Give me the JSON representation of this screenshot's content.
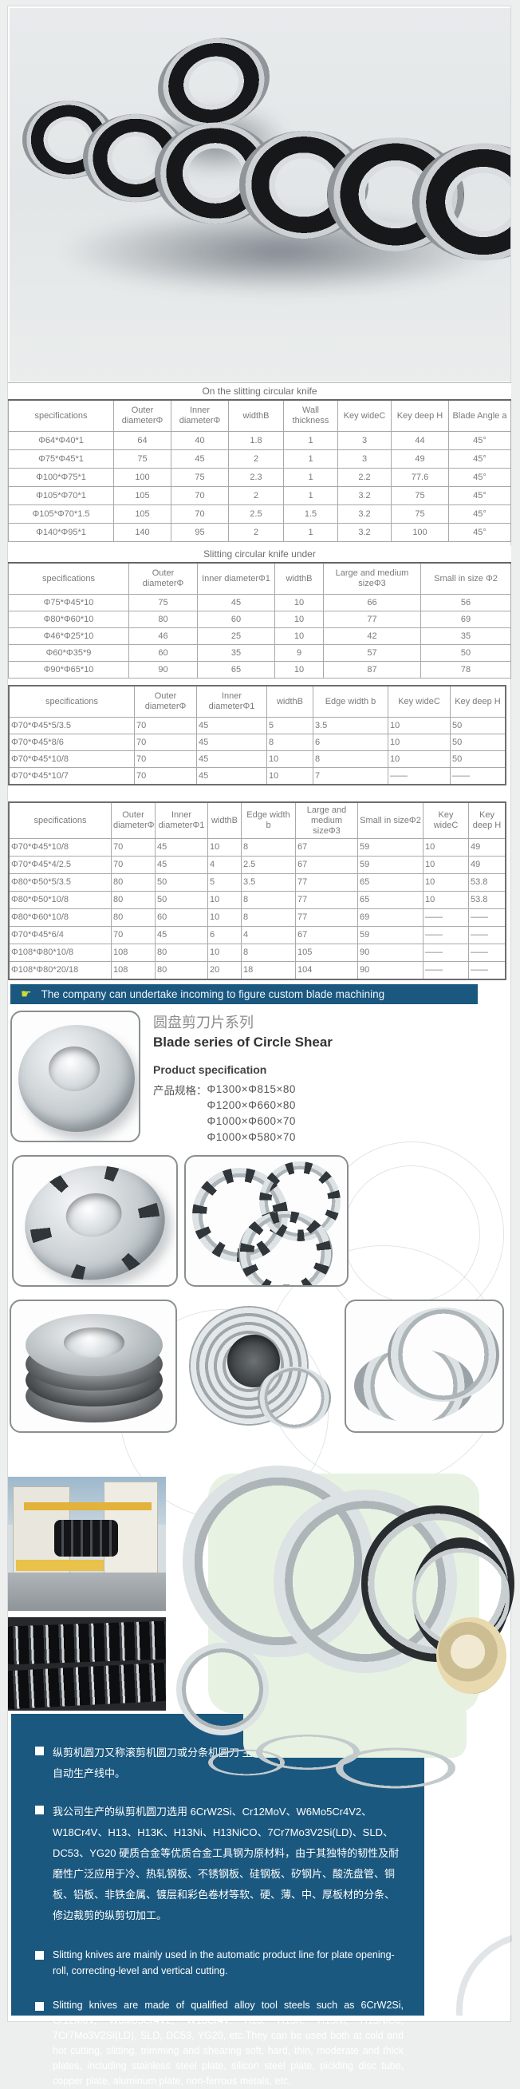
{
  "colors": {
    "accent_blue": "#1b587f",
    "page_bg": "#edefef",
    "table_text": "#7a7a7a"
  },
  "tables": [
    {
      "title": "On the slitting circular knife",
      "columns": [
        "specifications",
        "Outer diameterΦ",
        "Inner diameterΦ",
        "widthB",
        "Wall thickness",
        "Key wideC",
        "Key deep H",
        "Blade Angle a"
      ],
      "rows": [
        [
          "Φ64*Φ40*1",
          "64",
          "40",
          "1.8",
          "1",
          "3",
          "44",
          "45°"
        ],
        [
          "Φ75*Φ45*1",
          "75",
          "45",
          "2",
          "1",
          "3",
          "49",
          "45°"
        ],
        [
          "Φ100*Φ75*1",
          "100",
          "75",
          "2.3",
          "1",
          "2.2",
          "77.6",
          "45°"
        ],
        [
          "Φ105*Φ70*1",
          "105",
          "70",
          "2",
          "1",
          "3.2",
          "75",
          "45°"
        ],
        [
          "Φ105*Φ70*1.5",
          "105",
          "70",
          "2.5",
          "1.5",
          "3.2",
          "75",
          "45°"
        ],
        [
          "Φ140*Φ95*1",
          "140",
          "95",
          "2",
          "1",
          "3.2",
          "100",
          "45°"
        ]
      ]
    },
    {
      "title": "Slitting circular knife under",
      "columns": [
        "specifications",
        "Outer diameterΦ",
        "Inner diameterΦ1",
        "widthB",
        "Large and medium sizeΦ3",
        "Small in size Φ2"
      ],
      "rows": [
        [
          "Φ75*Φ45*10",
          "75",
          "45",
          "10",
          "66",
          "56"
        ],
        [
          "Φ80*Φ60*10",
          "80",
          "60",
          "10",
          "77",
          "69"
        ],
        [
          "Φ46*Φ25*10",
          "46",
          "25",
          "10",
          "42",
          "35"
        ],
        [
          "Φ60*Φ35*9",
          "60",
          "35",
          "9",
          "57",
          "50"
        ],
        [
          "Φ90*Φ65*10",
          "90",
          "65",
          "10",
          "87",
          "78"
        ]
      ]
    },
    {
      "title": null,
      "columns": [
        "specifications",
        "Outer diameterΦ",
        "Inner diameterΦ1",
        "widthB",
        "Edge width b",
        "Key wideC",
        "Key deep H"
      ],
      "rows": [
        [
          "Φ70*Φ45*5/3.5",
          "70",
          "45",
          "5",
          "3.5",
          "10",
          "50"
        ],
        [
          "Φ70*Φ45*8/6",
          "70",
          "45",
          "8",
          "6",
          "10",
          "50"
        ],
        [
          "Φ70*Φ45*10/8",
          "70",
          "45",
          "10",
          "8",
          "10",
          "50"
        ],
        [
          "Φ70*Φ45*10/7",
          "70",
          "45",
          "10",
          "7",
          "——",
          "——"
        ]
      ]
    },
    {
      "title": null,
      "columns": [
        "specifications",
        "Outer diameterΦ",
        "Inner diameterΦ1",
        "widthB",
        "Edge width b",
        "Large and medium sizeΦ3",
        "Small in sizeΦ2",
        "Key wideC",
        "Key deep H"
      ],
      "rows": [
        [
          "Φ70*Φ45*10/8",
          "70",
          "45",
          "10",
          "8",
          "67",
          "59",
          "10",
          "49"
        ],
        [
          "Φ70*Φ45*4/2.5",
          "70",
          "45",
          "4",
          "2.5",
          "67",
          "59",
          "10",
          "49"
        ],
        [
          "Φ80*Φ50*5/3.5",
          "80",
          "50",
          "5",
          "3.5",
          "77",
          "65",
          "10",
          "53.8"
        ],
        [
          "Φ80*Φ50*10/8",
          "80",
          "50",
          "10",
          "8",
          "77",
          "65",
          "10",
          "53.8"
        ],
        [
          "Φ80*Φ60*10/8",
          "80",
          "60",
          "10",
          "8",
          "77",
          "69",
          "——",
          "——"
        ],
        [
          "Φ70*Φ45*6/4",
          "70",
          "45",
          "6",
          "4",
          "67",
          "59",
          "——",
          "——"
        ],
        [
          "Φ108*Φ80*10/8",
          "108",
          "80",
          "10",
          "8",
          "105",
          "90",
          "——",
          "——"
        ],
        [
          "Φ108*Φ80*20/18",
          "108",
          "80",
          "20",
          "18",
          "104",
          "90",
          "——",
          "——"
        ]
      ]
    }
  ],
  "banner": {
    "icon": "pointing-hand-icon",
    "text": "The company can undertake incoming to figure custom blade machining"
  },
  "product": {
    "title_zh": "圆盘剪刀片系列",
    "title_en": "Blade series of Circle Shear",
    "spec_heading": "Product specification",
    "spec_label": "产品规格：",
    "specs": [
      "Φ1300×Φ815×80",
      "Φ1200×Φ660×80",
      "Φ1000×Φ600×70",
      "Φ1000×Φ580×70"
    ]
  },
  "footer": {
    "bullets": [
      "纵剪机圆刀又称滚剪机圆刀或分条机圆刀 主要使用在板材开卷校平纵向剪切自动生产线中。",
      "我公司生产的纵剪机圆刀选用 6CrW2Si、Cr12MoV、W6Mo5Cr4V2、W18Cr4V、H13、H13K、H13Ni、H13NiCO、7Cr7Mo3V2Si(LD)、SLD、DC53、YG20 硬质合金等优质合金工具钢为原材料，由于其独特的韧性及耐磨性广泛应用于冷、热轧钢板、不锈钢板、硅钢板、矽钢片、酸洗盘管、铜板、铝板、非铁金属、镀层和彩色卷材等软、硬、薄、中、厚板材的分条、修边裁剪的纵剪切加工。",
      "Slitting knives are mainly used in the automatic product line for plate opening-roll, correcting-level and vertical cutting.",
      "Slitting knives are made of qualified alloy tool steels such as 6CrW2Si, Cr12MoV, W6Mo5Cr4V2, W18Cr4V, H13, H13K, H13Ni, H13NiCo, 7Cr7Mo3V2Si(LD), SLD, DC53, YG20, etc.They can be used both at cold and hot cutting, slitting, trimming and shearing soft, hard, thin, moderate and thick plates, including stainless steel plate, silicon steel plate, pickling disc tube, copper plate, aluminum plate, non-ferrous metals, etc."
    ]
  }
}
